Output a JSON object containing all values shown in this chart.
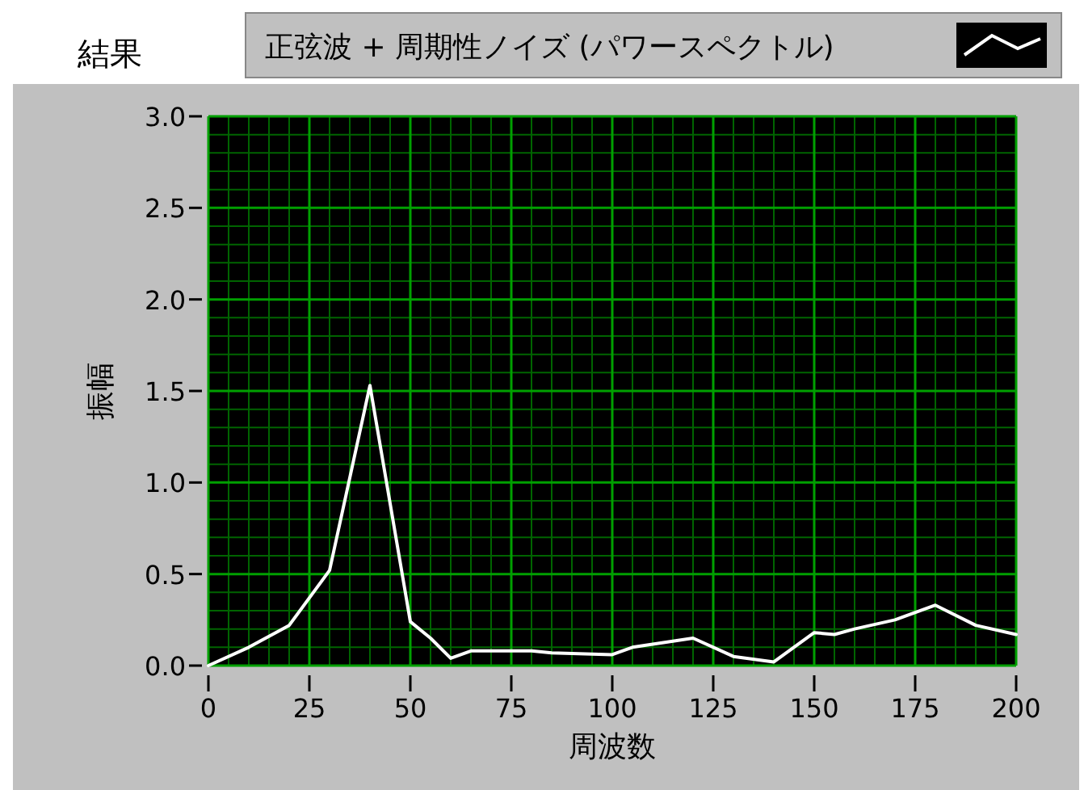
{
  "chart_data": {
    "type": "line",
    "title": "結果",
    "xlabel": "周波数",
    "ylabel": "振幅",
    "x": [
      0,
      10,
      20,
      30,
      40,
      50,
      55,
      60,
      65,
      70,
      80,
      85,
      100,
      105,
      120,
      130,
      140,
      150,
      155,
      160,
      170,
      180,
      190,
      200
    ],
    "series": [
      {
        "name": "正弦波 + 周期性ノイズ (パワースペクトル)",
        "color": "#ffffff",
        "values": [
          0.0,
          0.1,
          0.22,
          0.52,
          1.53,
          0.24,
          0.15,
          0.04,
          0.08,
          0.08,
          0.08,
          0.07,
          0.06,
          0.1,
          0.15,
          0.05,
          0.02,
          0.18,
          0.17,
          0.2,
          0.25,
          0.33,
          0.22,
          0.17
        ]
      }
    ],
    "xlim": [
      0,
      200
    ],
    "ylim": [
      0,
      3
    ],
    "xticks": [
      0,
      {
        "value": 5,
        "label": null
      },
      {
        "value": 10,
        "label": null
      },
      {
        "value": 15,
        "label": null
      },
      {
        "value": 20,
        "label": null
      },
      25,
      {
        "value": 30,
        "label": null
      },
      {
        "value": 35,
        "label": null
      },
      {
        "value": 40,
        "label": null
      },
      {
        "value": 45,
        "label": null
      },
      50,
      {
        "value": 55,
        "label": null
      },
      {
        "value": 60,
        "label": null
      },
      {
        "value": 65,
        "label": null
      },
      {
        "value": 70,
        "label": null
      },
      75,
      {
        "value": 80,
        "label": null
      },
      {
        "value": 85,
        "label": null
      },
      {
        "value": 90,
        "label": null
      },
      {
        "value": 95,
        "label": null
      },
      100,
      {
        "value": 105,
        "label": null
      },
      {
        "value": 110,
        "label": null
      },
      {
        "value": 115,
        "label": null
      },
      {
        "value": 120,
        "label": null
      },
      125,
      {
        "value": 130,
        "label": null
      },
      {
        "value": 135,
        "label": null
      },
      {
        "value": 140,
        "label": null
      },
      {
        "value": 145,
        "label": null
      },
      150,
      {
        "value": 155,
        "label": null
      },
      {
        "value": 160,
        "label": null
      },
      {
        "value": 165,
        "label": null
      },
      {
        "value": 170,
        "label": null
      },
      175,
      {
        "value": 180,
        "label": null
      },
      {
        "value": 185,
        "label": null
      },
      {
        "value": 190,
        "label": null
      },
      {
        "value": 195,
        "label": null
      },
      200
    ],
    "yticks": [
      {
        "value": 0,
        "label": "0.0"
      },
      {
        "value": 0.1,
        "label": null
      },
      {
        "value": 0.2,
        "label": null
      },
      {
        "value": 0.3,
        "label": null
      },
      {
        "value": 0.4,
        "label": null
      },
      {
        "value": 0.5,
        "label": "0.5"
      },
      {
        "value": 0.6,
        "label": null
      },
      {
        "value": 0.7,
        "label": null
      },
      {
        "value": 0.8,
        "label": null
      },
      {
        "value": 0.9,
        "label": null
      },
      {
        "value": 1,
        "label": "1.0"
      },
      {
        "value": 1.1,
        "label": null
      },
      {
        "value": 1.2,
        "label": null
      },
      {
        "value": 1.3,
        "label": null
      },
      {
        "value": 1.4,
        "label": null
      },
      {
        "value": 1.5,
        "label": "1.5"
      },
      {
        "value": 1.6,
        "label": null
      },
      {
        "value": 1.7,
        "label": null
      },
      {
        "value": 1.8,
        "label": null
      },
      {
        "value": 1.9,
        "label": null
      },
      {
        "value": 2,
        "label": "2.0"
      },
      {
        "value": 2.1,
        "label": null
      },
      {
        "value": 2.2,
        "label": null
      },
      {
        "value": 2.3,
        "label": null
      },
      {
        "value": 2.4,
        "label": null
      },
      {
        "value": 2.5,
        "label": "2.5"
      },
      {
        "value": 2.6,
        "label": null
      },
      {
        "value": 2.7,
        "label": null
      },
      {
        "value": 2.8,
        "label": null
      },
      {
        "value": 2.9,
        "label": null
      },
      {
        "value": 3,
        "label": "3.0"
      }
    ],
    "grid": true,
    "legend": "top"
  }
}
